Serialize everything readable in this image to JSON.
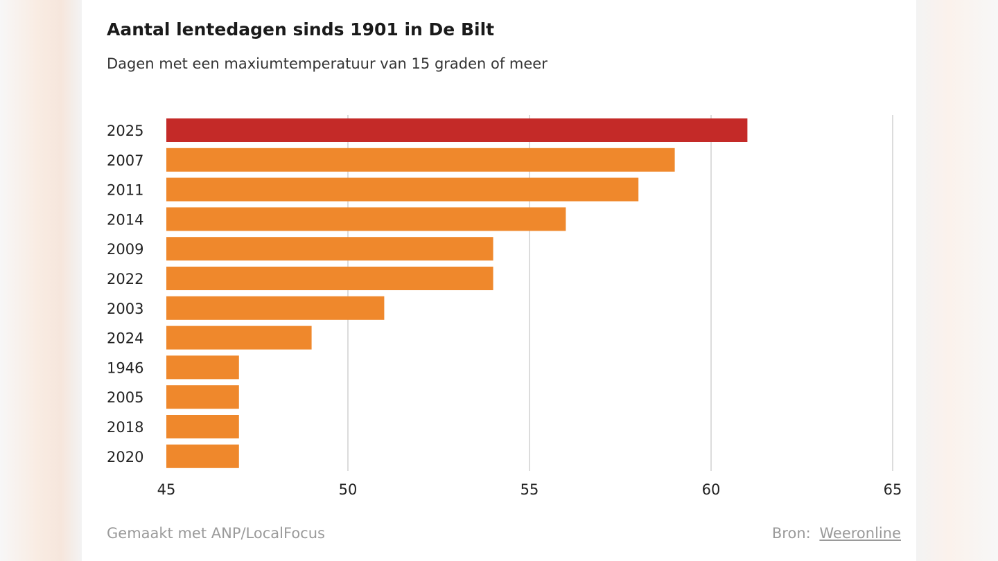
{
  "chart_data": {
    "type": "bar",
    "orientation": "horizontal",
    "title": "Aantal lentedagen sinds 1901 in De Bilt",
    "subtitle": "Dagen met een maxiumtemperatuur van 15 graden of meer",
    "categories": [
      "2025",
      "2007",
      "2011",
      "2014",
      "2009",
      "2022",
      "2003",
      "2024",
      "1946",
      "2005",
      "2018",
      "2020"
    ],
    "values": [
      61,
      59,
      58,
      56,
      54,
      54,
      51,
      49,
      47,
      47,
      47,
      47
    ],
    "xlim": [
      45,
      65
    ],
    "xticks": [
      45,
      50,
      55,
      60,
      65
    ],
    "grid": true,
    "highlight_color": "#c42a28",
    "bar_color": "#ef882c",
    "highlight_category": "2025"
  },
  "footer": {
    "credit": "Gemaakt met ANP/LocalFocus",
    "source_label": "Bron:",
    "source_link": "Weeronline"
  }
}
